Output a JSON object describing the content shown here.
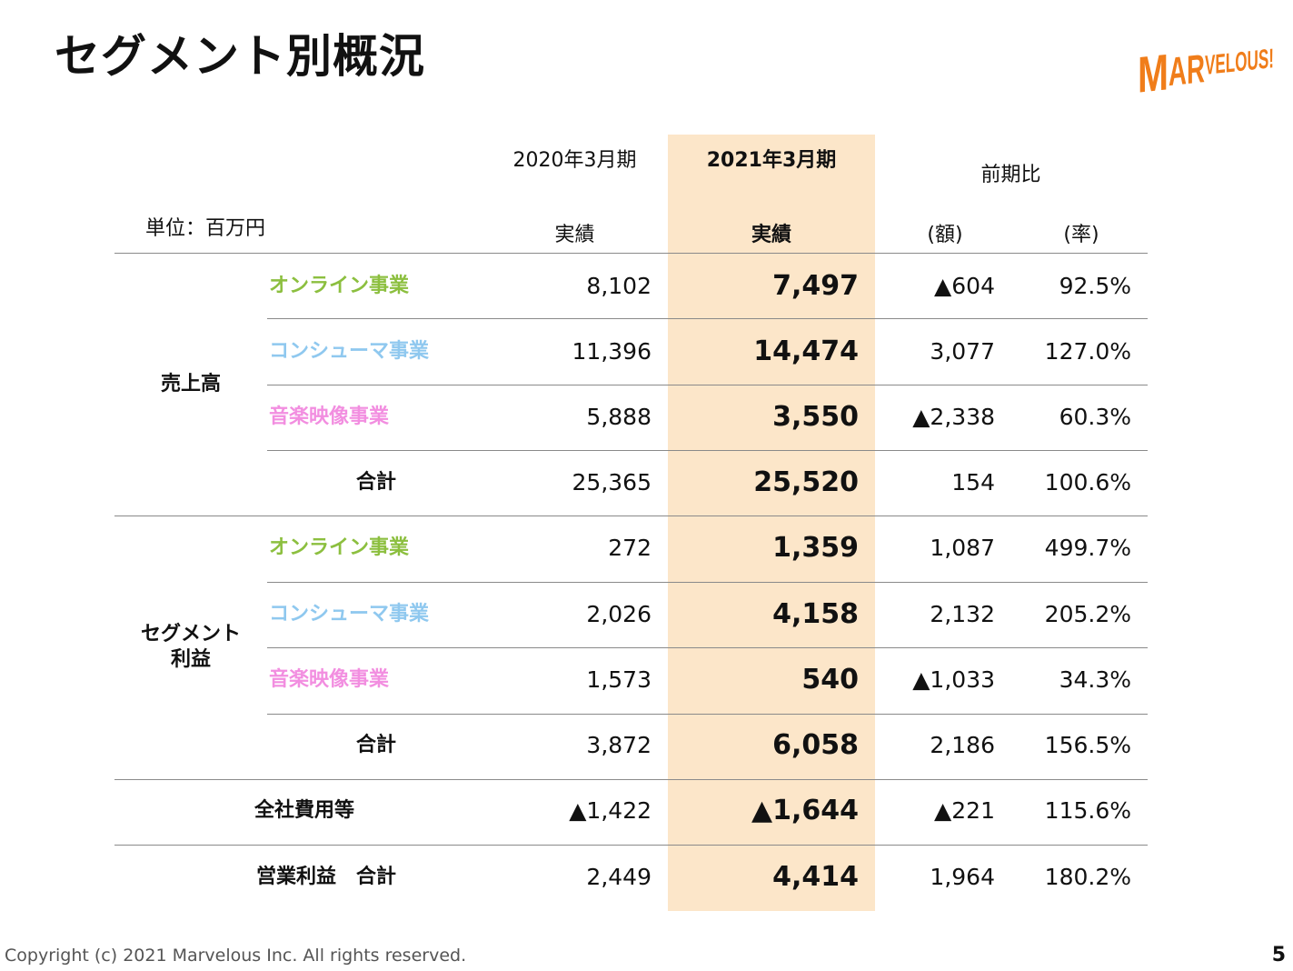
{
  "title": "セグメント別概況",
  "logo_text": "MARVELOUS!",
  "unit_label": "単位：百万円",
  "headers": {
    "prev_period": "2020年3月期",
    "prev_sub": "実績",
    "cur_period": "2021年3月期",
    "cur_sub": "実績",
    "compare": "前期比",
    "compare_amount": "(額)",
    "compare_rate": "(率)"
  },
  "groups": {
    "sales": "売上高",
    "segment_profit_l1": "セグメント",
    "segment_profit_l2": "利益"
  },
  "rows": [
    {
      "label": "オンライン事業",
      "color": "#8cbf3f",
      "prev": "8,102",
      "cur": "7,497",
      "diff": "▲604",
      "rate": "92.5%"
    },
    {
      "label": "コンシューマ事業",
      "color": "#8fc8ef",
      "prev": "11,396",
      "cur": "14,474",
      "diff": "3,077",
      "rate": "127.0%"
    },
    {
      "label": "音楽映像事業",
      "color": "#f28ee0",
      "prev": "5,888",
      "cur": "3,550",
      "diff": "▲2,338",
      "rate": "60.3%"
    },
    {
      "label": "合計",
      "color": "#111111",
      "prev": "25,365",
      "cur": "25,520",
      "diff": "154",
      "rate": "100.6%"
    },
    {
      "label": "オンライン事業",
      "color": "#8cbf3f",
      "prev": "272",
      "cur": "1,359",
      "diff": "1,087",
      "rate": "499.7%"
    },
    {
      "label": "コンシューマ事業",
      "color": "#8fc8ef",
      "prev": "2,026",
      "cur": "4,158",
      "diff": "2,132",
      "rate": "205.2%"
    },
    {
      "label": "音楽映像事業",
      "color": "#f28ee0",
      "prev": "1,573",
      "cur": "540",
      "diff": "▲1,033",
      "rate": "34.3%"
    },
    {
      "label": "合計",
      "color": "#111111",
      "prev": "3,872",
      "cur": "6,058",
      "diff": "2,186",
      "rate": "156.5%"
    },
    {
      "label": "全社費用等",
      "color": "#111111",
      "prev": "▲1,422",
      "cur": "▲1,644",
      "diff": "▲221",
      "rate": "115.6%"
    },
    {
      "label": "営業利益　合計",
      "color": "#111111",
      "prev": "2,449",
      "cur": "4,414",
      "diff": "1,964",
      "rate": "180.2%"
    }
  ],
  "footer": "Copyright (c) 2021 Marvelous Inc. All rights reserved.",
  "page_number": "5"
}
